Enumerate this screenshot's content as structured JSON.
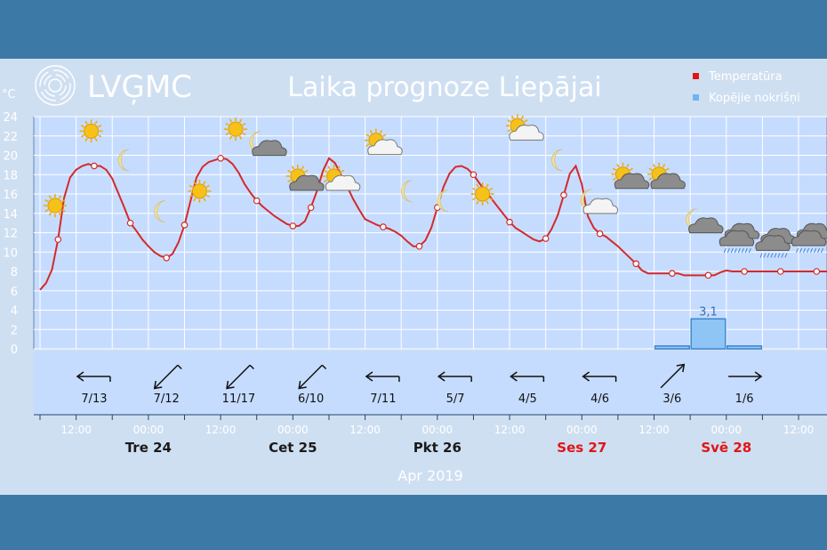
{
  "logo": {
    "text": "LVĢMC"
  },
  "chart_data": {
    "type": "line",
    "title": "Laika prognoze Liepājai",
    "ylabel": "°C",
    "ylim": [
      0,
      24
    ],
    "yticks": [
      "0",
      "2",
      "4",
      "6",
      "8",
      "10",
      "12",
      "14",
      "16",
      "18",
      "20",
      "22",
      "24"
    ],
    "xlabel": "Apr 2019",
    "x_tick_labels": [
      "12:00",
      "00:00",
      "12:00",
      "00:00",
      "12:00",
      "00:00",
      "12:00",
      "00:00",
      "12:00",
      "00:00",
      "12:00"
    ],
    "days": [
      {
        "label": "Tre 24",
        "color": "#1a1a1a"
      },
      {
        "label": "Cet 25",
        "color": "#1a1a1a"
      },
      {
        "label": "Pkt 26",
        "color": "#1a1a1a"
      },
      {
        "label": "Ses 27",
        "color": "#e01515"
      },
      {
        "label": "Svē 28",
        "color": "#e01515"
      }
    ],
    "legend": {
      "position": "top-right",
      "entries": [
        {
          "label": "Temperatūra",
          "color": "#e01515"
        },
        {
          "label": "Kopējie nokrišņi",
          "color": "#6fb4f0"
        }
      ]
    },
    "temperature": {
      "name": "Temperatūra",
      "color": "#d42a2a",
      "x": [
        0,
        1,
        2,
        3,
        4,
        5,
        6,
        7,
        8,
        9,
        10,
        11,
        12,
        13,
        14,
        15,
        16,
        17,
        18,
        19,
        20,
        21,
        22,
        23,
        24,
        25,
        26,
        27,
        28,
        29,
        30,
        31,
        32,
        33,
        34,
        35,
        36,
        37,
        38,
        39,
        40,
        41,
        42,
        43,
        44,
        45,
        46,
        47,
        48,
        49,
        50,
        51,
        52,
        53,
        54,
        55,
        56,
        57,
        58,
        59,
        60,
        61,
        62,
        63,
        64,
        65,
        66,
        67,
        68,
        69,
        70,
        71,
        72,
        73,
        74,
        75,
        76,
        77,
        78,
        79,
        80,
        81,
        82,
        83,
        84,
        85,
        86,
        87,
        88,
        89,
        90,
        91,
        92,
        93,
        94,
        95,
        96,
        97,
        98,
        99,
        100,
        101,
        102,
        103,
        104,
        105,
        106,
        107,
        108,
        109,
        110,
        111,
        112,
        113,
        114,
        115,
        116,
        117,
        118,
        119,
        120,
        121,
        122,
        123,
        124,
        125,
        126,
        127,
        128,
        129,
        130,
        131,
        132
      ],
      "y": [
        6.1,
        6.8,
        8.2,
        11.3,
        15.6,
        17.7,
        18.5,
        18.9,
        19.1,
        18.9,
        18.9,
        18.5,
        17.6,
        16.1,
        14.6,
        13.0,
        12.2,
        11.3,
        10.6,
        10.0,
        9.6,
        9.4,
        9.8,
        11.0,
        12.8,
        15.3,
        17.7,
        18.8,
        19.3,
        19.5,
        19.7,
        19.6,
        19.1,
        18.2,
        17.0,
        16.1,
        15.3,
        14.7,
        14.2,
        13.7,
        13.3,
        12.9,
        12.7,
        12.7,
        13.2,
        14.6,
        16.3,
        18.4,
        19.7,
        19.2,
        18.0,
        16.8,
        15.5,
        14.4,
        13.4,
        13.1,
        12.8,
        12.6,
        12.4,
        12.1,
        11.7,
        11.1,
        10.6,
        10.6,
        11.2,
        12.5,
        14.6,
        16.7,
        18.1,
        18.8,
        18.9,
        18.6,
        18.0,
        17.1,
        16.3,
        15.5,
        14.7,
        13.9,
        13.1,
        12.5,
        12.1,
        11.7,
        11.3,
        11.1,
        11.4,
        12.4,
        13.8,
        15.9,
        18.1,
        18.9,
        17.0,
        13.7,
        12.5,
        11.9,
        11.6,
        11.1,
        10.6,
        10.0,
        9.4,
        8.8,
        8.1,
        7.8,
        7.8,
        7.8,
        7.8,
        7.8,
        7.8,
        7.6,
        7.6,
        7.6,
        7.6,
        7.6,
        7.6,
        7.9,
        8.1,
        8.0,
        8.0,
        8.0,
        8.0,
        8.0,
        8.0,
        8.0,
        8.0,
        8.0,
        8.0,
        8.0,
        8.0,
        8.0,
        8.0,
        8.0,
        8.0,
        8.0,
        8.0
      ],
      "marker_x": [
        3,
        9,
        15,
        21,
        24,
        30,
        36,
        42,
        45,
        51,
        57,
        63,
        66,
        72,
        78,
        84,
        87,
        93,
        99,
        105,
        111,
        117,
        123,
        129
      ]
    },
    "precipitation": {
      "name": "Kopējie nokrišņi",
      "color": "#8ec5f5",
      "bars": [
        {
          "x_from": 102,
          "x_to": 108,
          "value": 0.3,
          "label": ""
        },
        {
          "x_from": 108,
          "x_to": 114,
          "value": 3.1,
          "label": "3,1"
        },
        {
          "x_from": 114,
          "x_to": 120,
          "value": 0.3,
          "label": ""
        }
      ]
    },
    "weather_icons": [
      {
        "type": "sun",
        "x": 2.5,
        "y": 14.8
      },
      {
        "type": "sun",
        "x": 8.5,
        "y": 22.5
      },
      {
        "type": "moon",
        "x": 14.5,
        "y": 19.5
      },
      {
        "type": "moon",
        "x": 20.5,
        "y": 14.2
      },
      {
        "type": "sun",
        "x": 26.5,
        "y": 16.3
      },
      {
        "type": "sun",
        "x": 32.5,
        "y": 22.7
      },
      {
        "type": "moon-cloud",
        "x": 37.5,
        "y": 21.0
      },
      {
        "type": "sun-cloud",
        "x": 44,
        "y": 17.3
      },
      {
        "type": "sun-cloud",
        "x": 50,
        "y": 17.3
      },
      {
        "type": "sun-cloud",
        "x": 57,
        "y": 21.0
      },
      {
        "type": "moon",
        "x": 61.5,
        "y": 16.3
      },
      {
        "type": "moon",
        "x": 67.5,
        "y": 15.3
      },
      {
        "type": "sun",
        "x": 73.5,
        "y": 16.0
      },
      {
        "type": "sun-cloud",
        "x": 80.5,
        "y": 22.5
      },
      {
        "type": "moon",
        "x": 86.5,
        "y": 19.5
      },
      {
        "type": "moon-cloud",
        "x": 92.5,
        "y": 15.0
      },
      {
        "type": "sun-cloud",
        "x": 98,
        "y": 17.5
      },
      {
        "type": "sun-cloud",
        "x": 104,
        "y": 17.5
      },
      {
        "type": "moon-cloud",
        "x": 110,
        "y": 13.0
      },
      {
        "type": "rain-cloud",
        "x": 116,
        "y": 11.5
      },
      {
        "type": "rain-cloud",
        "x": 122,
        "y": 11.0
      },
      {
        "type": "rain-cloud",
        "x": 128,
        "y": 11.5
      }
    ],
    "wind": [
      {
        "x": 9,
        "label": "7/13",
        "angle": 0,
        "ticks": "right"
      },
      {
        "x": 21,
        "label": "7/12",
        "angle": -45,
        "ticks": "right"
      },
      {
        "x": 33,
        "label": "11/17",
        "angle": -45,
        "ticks": "right"
      },
      {
        "x": 45,
        "label": "6/10",
        "angle": -45,
        "ticks": "right"
      },
      {
        "x": 57,
        "label": "7/11",
        "angle": 0,
        "ticks": "right"
      },
      {
        "x": 69,
        "label": "5/7",
        "angle": 0,
        "ticks": "right"
      },
      {
        "x": 81,
        "label": "4/5",
        "angle": 0,
        "ticks": "right"
      },
      {
        "x": 93,
        "label": "4/6",
        "angle": 0,
        "ticks": "right"
      },
      {
        "x": 105,
        "label": "3/6",
        "angle": -45,
        "ticks": "left"
      },
      {
        "x": 117,
        "label": "1/6",
        "angle": 0,
        "ticks": "left"
      }
    ]
  }
}
